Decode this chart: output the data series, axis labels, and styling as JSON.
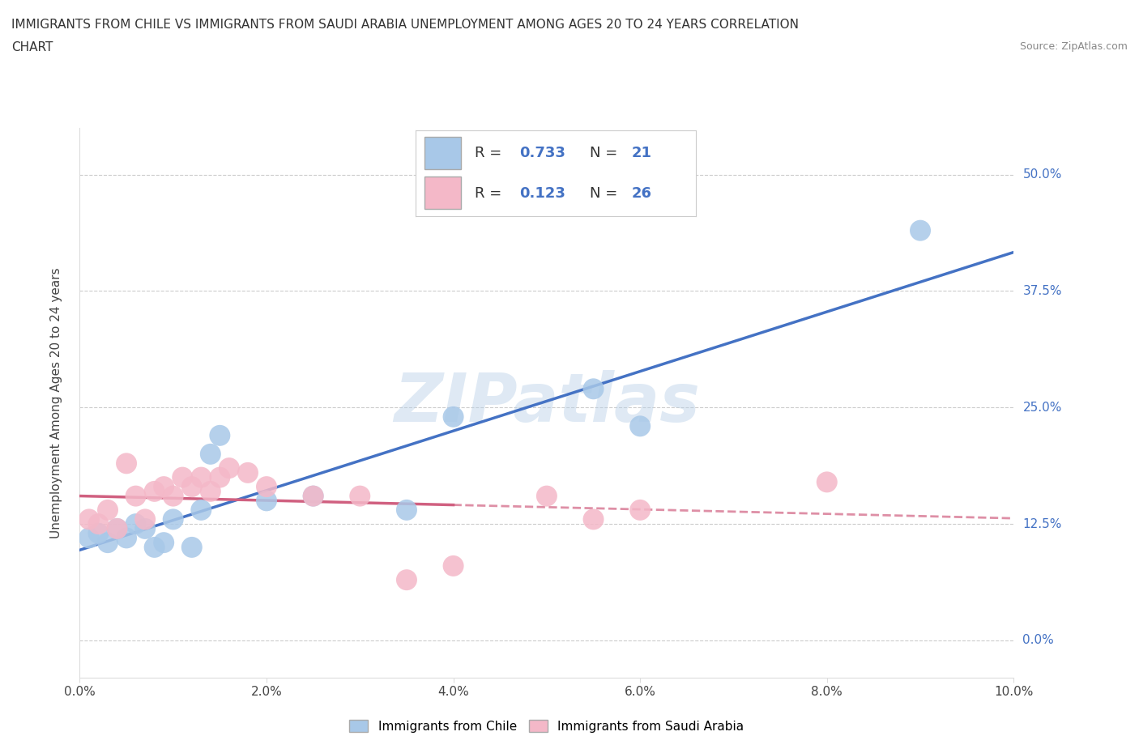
{
  "title_line1": "IMMIGRANTS FROM CHILE VS IMMIGRANTS FROM SAUDI ARABIA UNEMPLOYMENT AMONG AGES 20 TO 24 YEARS CORRELATION",
  "title_line2": "CHART",
  "source_text": "Source: ZipAtlas.com",
  "ylabel": "Unemployment Among Ages 20 to 24 years",
  "legend1_label": "Immigrants from Chile",
  "legend2_label": "Immigrants from Saudi Arabia",
  "R1": 0.733,
  "N1": 21,
  "R2": 0.123,
  "N2": 26,
  "chile_color": "#a8c8e8",
  "chile_line_color": "#4472c4",
  "saudi_color": "#f4b8c8",
  "saudi_line_color": "#d06080",
  "xlim": [
    0.0,
    0.1
  ],
  "ylim": [
    -0.04,
    0.55
  ],
  "yticks": [
    0.0,
    0.125,
    0.25,
    0.375,
    0.5
  ],
  "ytick_labels": [
    "0.0%",
    "12.5%",
    "25.0%",
    "37.5%",
    "50.0%"
  ],
  "xticks": [
    0.0,
    0.02,
    0.04,
    0.06,
    0.08,
    0.1
  ],
  "xtick_labels": [
    "0.0%",
    "2.0%",
    "4.0%",
    "6.0%",
    "8.0%",
    "10.0%"
  ],
  "chile_x": [
    0.001,
    0.002,
    0.003,
    0.004,
    0.005,
    0.006,
    0.007,
    0.008,
    0.009,
    0.01,
    0.012,
    0.013,
    0.014,
    0.015,
    0.02,
    0.025,
    0.035,
    0.04,
    0.055,
    0.06,
    0.09
  ],
  "chile_y": [
    0.11,
    0.115,
    0.105,
    0.12,
    0.11,
    0.125,
    0.12,
    0.1,
    0.105,
    0.13,
    0.1,
    0.14,
    0.2,
    0.22,
    0.15,
    0.155,
    0.14,
    0.24,
    0.27,
    0.23,
    0.44
  ],
  "saudi_x": [
    0.001,
    0.002,
    0.003,
    0.004,
    0.005,
    0.006,
    0.007,
    0.008,
    0.009,
    0.01,
    0.011,
    0.012,
    0.013,
    0.014,
    0.015,
    0.016,
    0.018,
    0.02,
    0.025,
    0.03,
    0.035,
    0.04,
    0.05,
    0.055,
    0.06,
    0.08
  ],
  "saudi_y": [
    0.13,
    0.125,
    0.14,
    0.12,
    0.19,
    0.155,
    0.13,
    0.16,
    0.165,
    0.155,
    0.175,
    0.165,
    0.175,
    0.16,
    0.175,
    0.185,
    0.18,
    0.165,
    0.155,
    0.155,
    0.065,
    0.08,
    0.155,
    0.13,
    0.14,
    0.17
  ],
  "watermark_text": "ZIPatlas",
  "background_color": "#ffffff",
  "grid_color": "#cccccc"
}
